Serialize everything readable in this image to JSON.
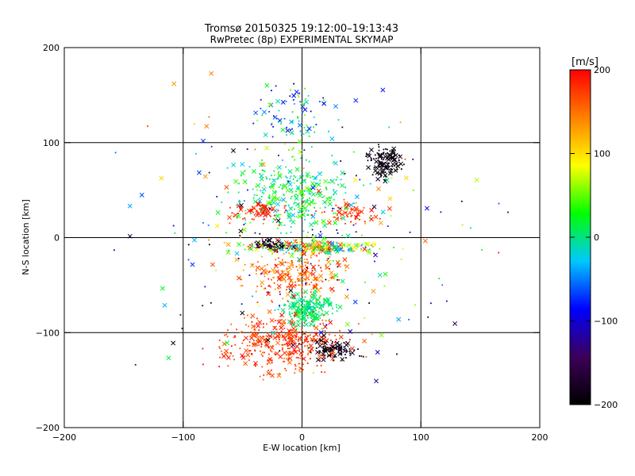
{
  "chart_data": {
    "type": "scatter",
    "title": "Tromsø 20150325 19:12:00–19:13:43",
    "subtitle": "RwPretec (8p) EXPERIMENTAL SKYMAP",
    "xlabel": "E-W location [km]",
    "ylabel": "N-S location [km]",
    "xlim": [
      -200,
      200
    ],
    "ylim": [
      -200,
      200
    ],
    "xticks": [
      -200,
      -100,
      0,
      100,
      200
    ],
    "yticks": [
      -200,
      -100,
      0,
      100,
      200
    ],
    "xtick_labels": [
      "−200",
      "−100",
      "0",
      "100",
      "200"
    ],
    "ytick_labels": [
      "−200",
      "−100",
      "0",
      "100",
      "200"
    ],
    "grid": true,
    "colorbar": {
      "label": "[m/s]",
      "range": [
        -200,
        200
      ],
      "ticks": [
        200,
        100,
        0,
        -100,
        -200
      ],
      "tick_labels": [
        "200",
        "100",
        "0",
        "−100",
        "−200"
      ],
      "colormap": [
        "#000000",
        "#3c005a",
        "#0000ff",
        "#00c8ff",
        "#00ff00",
        "#ffff00",
        "#ff8000",
        "#ff0000"
      ]
    },
    "markers": [
      "dot",
      "x"
    ],
    "clusters": [
      {
        "cx": 10,
        "cy": -10,
        "sx": 45,
        "sy": 6,
        "n": 260,
        "v": [
          -60,
          200
        ]
      },
      {
        "cx": -25,
        "cy": -8,
        "sx": 12,
        "sy": 4,
        "n": 60,
        "v": [
          -200,
          -160
        ]
      },
      {
        "cx": 5,
        "cy": -75,
        "sx": 18,
        "sy": 14,
        "n": 220,
        "v": [
          -10,
          20
        ]
      },
      {
        "cx": -15,
        "cy": -110,
        "sx": 45,
        "sy": 25,
        "n": 380,
        "v": [
          150,
          200
        ]
      },
      {
        "cx": 25,
        "cy": -118,
        "sx": 18,
        "sy": 8,
        "n": 90,
        "v": [
          -200,
          -170
        ]
      },
      {
        "cx": 70,
        "cy": 80,
        "sx": 12,
        "sy": 15,
        "n": 130,
        "v": [
          -200,
          -180
        ]
      },
      {
        "cx": -5,
        "cy": 45,
        "sx": 38,
        "sy": 30,
        "n": 320,
        "v": [
          -40,
          60
        ]
      },
      {
        "cx": -5,
        "cy": 130,
        "sx": 30,
        "sy": 30,
        "n": 90,
        "v": [
          -120,
          60
        ]
      },
      {
        "cx": -35,
        "cy": 28,
        "sx": 18,
        "sy": 8,
        "n": 70,
        "v": [
          170,
          200
        ]
      },
      {
        "cx": 40,
        "cy": 25,
        "sx": 20,
        "sy": 10,
        "n": 60,
        "v": [
          160,
          200
        ]
      },
      {
        "cx": -5,
        "cy": -40,
        "sx": 35,
        "sy": 20,
        "n": 200,
        "v": [
          120,
          200
        ]
      },
      {
        "cx": 0,
        "cy": 0,
        "sx": 110,
        "sy": 110,
        "n": 260,
        "v": [
          -200,
          200
        ]
      }
    ]
  }
}
